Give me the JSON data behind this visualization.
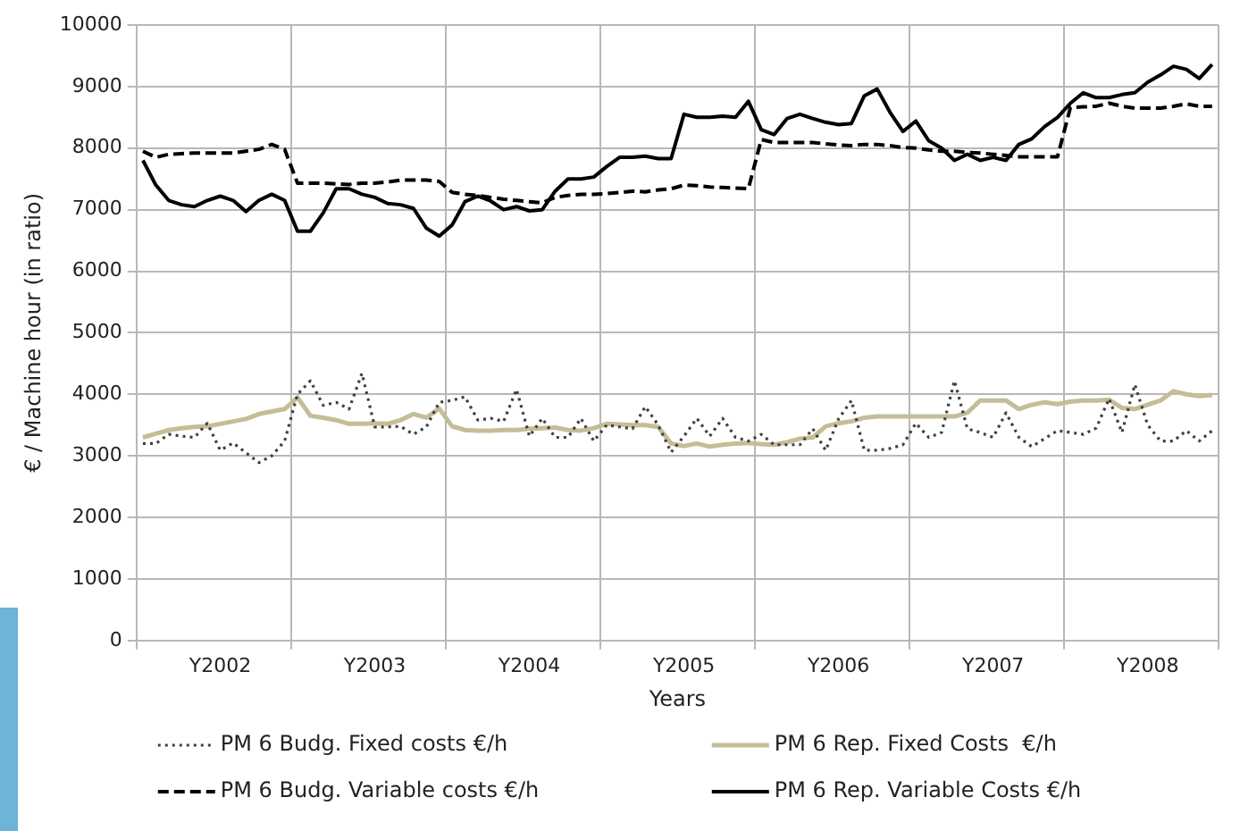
{
  "chart_data": {
    "type": "line",
    "xlabel": "Years",
    "ylabel": "€ / Machine hour (in ratio)",
    "categories": [
      null,
      null,
      null,
      null,
      null,
      null,
      "Y2002",
      null,
      null,
      null,
      null,
      null,
      null,
      null,
      null,
      null,
      null,
      null,
      "Y2003",
      null,
      null,
      null,
      null,
      null,
      null,
      null,
      null,
      null,
      null,
      null,
      "Y2004",
      null,
      null,
      null,
      null,
      null,
      null,
      null,
      null,
      null,
      null,
      null,
      "Y2005",
      null,
      null,
      null,
      null,
      null,
      null,
      null,
      null,
      null,
      null,
      null,
      "Y2006",
      null,
      null,
      null,
      null,
      null,
      null,
      null,
      null,
      null,
      null,
      null,
      "Y2007",
      null,
      null,
      null,
      null,
      null,
      null,
      null,
      null,
      null,
      null,
      null,
      "Y2008",
      null,
      null,
      null,
      null,
      null
    ],
    "series": [
      {
        "name": "PM 6 Budg. Fixed costs €/h",
        "color": "#404040",
        "line_style": "dotted",
        "values": [
          3200,
          3200,
          3350,
          3320,
          3300,
          3530,
          3090,
          3210,
          3050,
          2890,
          3000,
          3240,
          4000,
          4220,
          3820,
          3870,
          3760,
          4340,
          3470,
          3470,
          3480,
          3350,
          3470,
          3870,
          3900,
          3960,
          3580,
          3610,
          3560,
          4080,
          3320,
          3610,
          3300,
          3300,
          3610,
          3240,
          3500,
          3470,
          3440,
          3800,
          3500,
          3060,
          3320,
          3610,
          3320,
          3610,
          3300,
          3240,
          3350,
          3180,
          3180,
          3180,
          3440,
          3090,
          3600,
          3900,
          3090,
          3090,
          3120,
          3180,
          3530,
          3300,
          3380,
          4220,
          3440,
          3380,
          3300,
          3700,
          3300,
          3150,
          3280,
          3410,
          3380,
          3350,
          3450,
          3930,
          3380,
          4160,
          3500,
          3240,
          3240,
          3410,
          3240,
          3410
        ]
      },
      {
        "name": "PM 6 Rep. Fixed Costs  €/h",
        "color": "#c4bd97",
        "line_style": "solid",
        "values": [
          3300,
          3360,
          3420,
          3450,
          3470,
          3480,
          3520,
          3560,
          3600,
          3680,
          3720,
          3760,
          3950,
          3650,
          3620,
          3580,
          3520,
          3520,
          3530,
          3520,
          3580,
          3680,
          3620,
          3770,
          3480,
          3420,
          3410,
          3410,
          3420,
          3420,
          3440,
          3450,
          3460,
          3420,
          3410,
          3450,
          3520,
          3510,
          3500,
          3500,
          3470,
          3200,
          3160,
          3200,
          3150,
          3180,
          3200,
          3210,
          3190,
          3180,
          3220,
          3280,
          3300,
          3480,
          3530,
          3560,
          3620,
          3640,
          3640,
          3640,
          3640,
          3640,
          3640,
          3640,
          3700,
          3900,
          3900,
          3900,
          3760,
          3830,
          3870,
          3840,
          3880,
          3900,
          3900,
          3910,
          3780,
          3760,
          3830,
          3900,
          4050,
          4000,
          3970,
          3990
        ]
      },
      {
        "name": "PM 6 Budg. Variable costs €/h",
        "color": "#000000",
        "line_style": "dashed",
        "values": [
          7950,
          7850,
          7900,
          7910,
          7920,
          7920,
          7920,
          7920,
          7950,
          7980,
          8060,
          7980,
          7430,
          7430,
          7430,
          7420,
          7410,
          7430,
          7430,
          7450,
          7480,
          7480,
          7480,
          7460,
          7280,
          7250,
          7230,
          7200,
          7170,
          7150,
          7130,
          7110,
          7200,
          7230,
          7250,
          7250,
          7260,
          7280,
          7300,
          7290,
          7320,
          7340,
          7400,
          7390,
          7370,
          7360,
          7350,
          7340,
          8140,
          8090,
          8090,
          8090,
          8090,
          8070,
          8050,
          8040,
          8060,
          8060,
          8040,
          8010,
          8000,
          7970,
          7950,
          7950,
          7930,
          7920,
          7900,
          7880,
          7860,
          7860,
          7860,
          7860,
          8660,
          8670,
          8680,
          8730,
          8680,
          8650,
          8650,
          8650,
          8680,
          8720,
          8680,
          8680
        ]
      },
      {
        "name": "PM 6 Rep. Variable Costs €/h",
        "color": "#000000",
        "line_style": "solid",
        "values": [
          7800,
          7400,
          7150,
          7080,
          7050,
          7150,
          7220,
          7150,
          6970,
          7150,
          7250,
          7150,
          6650,
          6650,
          6950,
          7340,
          7340,
          7250,
          7200,
          7100,
          7080,
          7020,
          6700,
          6570,
          6750,
          7130,
          7220,
          7140,
          7000,
          7050,
          6980,
          7000,
          7300,
          7500,
          7500,
          7530,
          7700,
          7850,
          7850,
          7870,
          7830,
          7830,
          8550,
          8500,
          8500,
          8520,
          8500,
          8760,
          8300,
          8220,
          8480,
          8550,
          8480,
          8420,
          8380,
          8400,
          8850,
          8960,
          8580,
          8270,
          8440,
          8120,
          8000,
          7800,
          7900,
          7800,
          7850,
          7800,
          8060,
          8150,
          8350,
          8500,
          8730,
          8900,
          8820,
          8820,
          8870,
          8900,
          9070,
          9190,
          9330,
          9280,
          9130,
          9360
        ]
      }
    ],
    "ylim": [
      0,
      10000
    ],
    "yticks": [
      0,
      1000,
      2000,
      3000,
      4000,
      5000,
      6000,
      7000,
      8000,
      9000,
      10000
    ],
    "grid": true,
    "legend": "bottom"
  }
}
